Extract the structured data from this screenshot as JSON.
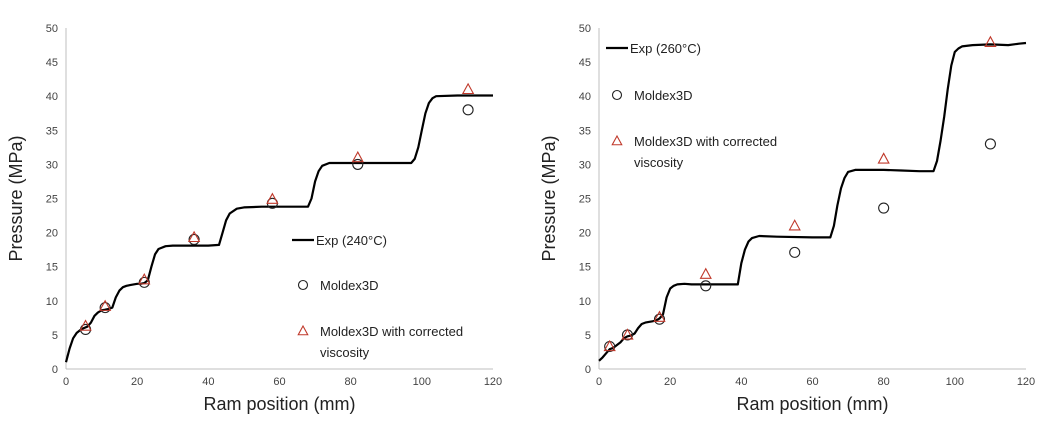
{
  "chart_data": [
    {
      "type": "line",
      "xlabel": "Ram position (mm)",
      "ylabel": "Pressure (MPa)",
      "xlim": [
        0,
        120
      ],
      "ylim": [
        0,
        50
      ],
      "xticks": [
        "0",
        "20",
        "40",
        "60",
        "80",
        "100",
        "120"
      ],
      "yticks": [
        "0",
        "5",
        "10",
        "15",
        "20",
        "25",
        "30",
        "35",
        "40",
        "45",
        "50"
      ],
      "grid": false,
      "legend_position": "center-right",
      "series": [
        {
          "name": "Exp (240°C)",
          "kind": "line",
          "color": "#000000",
          "x": [
            0,
            1,
            2,
            3,
            4,
            5,
            6,
            7,
            8,
            9,
            10,
            11,
            12,
            13,
            14,
            15,
            16,
            17,
            18,
            19,
            20,
            21,
            22,
            23,
            24,
            25,
            26,
            28,
            30,
            32,
            35,
            40,
            43,
            44,
            45,
            46,
            48,
            50,
            55,
            60,
            65,
            68,
            69,
            70,
            71,
            72,
            74,
            80,
            90,
            97,
            98,
            99,
            100,
            101,
            102,
            103,
            104,
            110,
            120
          ],
          "y": [
            1,
            3,
            4.5,
            5.3,
            5.7,
            6,
            6.2,
            6.8,
            7.8,
            8.3,
            8.6,
            8.7,
            8.8,
            9,
            10.5,
            11.5,
            12,
            12.2,
            12.3,
            12.4,
            12.5,
            12.5,
            12.6,
            13,
            15,
            16.8,
            17.6,
            18,
            18.1,
            18.1,
            18.1,
            18.1,
            18.2,
            20,
            21.8,
            22.8,
            23.5,
            23.7,
            23.8,
            23.8,
            23.8,
            23.8,
            25,
            27.5,
            29,
            29.8,
            30.2,
            30.2,
            30.2,
            30.2,
            30.8,
            32.5,
            35,
            37.5,
            39,
            39.7,
            40,
            40.1,
            40.1
          ]
        },
        {
          "name": "Moldex3D",
          "kind": "marker-circle",
          "color": "#222222",
          "x": [
            5.5,
            11,
            22,
            36,
            58,
            82,
            113
          ],
          "y": [
            5.8,
            9,
            12.7,
            19,
            24.3,
            30,
            38
          ]
        },
        {
          "name": "Moldex3D with corrected viscosity",
          "kind": "marker-triangle",
          "color": "#c0392b",
          "x": [
            5.5,
            11,
            22,
            36,
            58,
            82,
            113
          ],
          "y": [
            6.3,
            9.2,
            13.1,
            19.3,
            24.9,
            31,
            41
          ]
        }
      ]
    },
    {
      "type": "line",
      "xlabel": "Ram position (mm)",
      "ylabel": "Pressure (MPa)",
      "xlim": [
        0,
        120
      ],
      "ylim": [
        0,
        50
      ],
      "xticks": [
        "0",
        "20",
        "40",
        "60",
        "80",
        "100",
        "120"
      ],
      "yticks": [
        "0",
        "5",
        "10",
        "15",
        "20",
        "25",
        "30",
        "35",
        "40",
        "45",
        "50"
      ],
      "grid": false,
      "legend_position": "top-left",
      "series": [
        {
          "name": "Exp (260°C)",
          "kind": "line",
          "color": "#000000",
          "x": [
            0,
            1,
            2,
            3,
            4,
            5,
            6,
            7,
            8,
            9,
            10,
            11,
            12,
            13,
            14,
            15,
            16,
            17,
            18,
            19,
            20,
            21,
            22,
            24,
            26,
            28,
            30,
            35,
            39,
            40,
            41,
            42,
            43,
            45,
            50,
            60,
            65,
            66,
            67,
            68,
            69,
            70,
            72,
            75,
            80,
            85,
            90,
            94,
            95,
            96,
            97,
            98,
            99,
            100,
            101,
            102,
            105,
            110,
            115,
            118,
            120
          ],
          "y": [
            1.2,
            1.7,
            2.3,
            2.9,
            3.1,
            3.5,
            3.9,
            4.5,
            4.8,
            4.9,
            5.2,
            6,
            6.6,
            6.8,
            6.9,
            7,
            7.1,
            7.4,
            8,
            10.5,
            11.8,
            12.2,
            12.4,
            12.5,
            12.4,
            12.4,
            12.4,
            12.4,
            12.4,
            15.5,
            17.5,
            18.7,
            19.2,
            19.5,
            19.4,
            19.3,
            19.3,
            21,
            24,
            26.5,
            28,
            28.9,
            29.2,
            29.2,
            29.2,
            29.1,
            29,
            29,
            30.5,
            33.5,
            37,
            41,
            44.5,
            46.5,
            47,
            47.3,
            47.5,
            47.6,
            47.5,
            47.7,
            47.8
          ]
        },
        {
          "name": "Moldex3D",
          "kind": "marker-circle",
          "color": "#222222",
          "x": [
            3,
            8,
            17,
            30,
            55,
            80,
            110
          ],
          "y": [
            3.3,
            5,
            7.3,
            12.2,
            17.1,
            23.6,
            33
          ]
        },
        {
          "name": "Moldex3D with corrected viscosity",
          "kind": "marker-triangle",
          "color": "#c0392b",
          "x": [
            3,
            8,
            17,
            30,
            55,
            80,
            110
          ],
          "y": [
            3.3,
            5,
            7.6,
            13.9,
            21,
            30.8,
            47.9
          ]
        }
      ]
    }
  ]
}
